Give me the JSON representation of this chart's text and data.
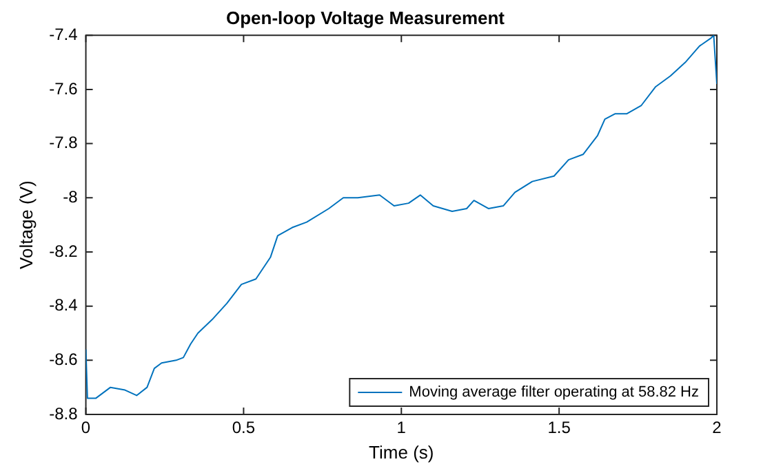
{
  "chart_data": {
    "type": "line",
    "title": "Open-loop Voltage Measurement",
    "xlabel": "Time (s)",
    "ylabel": "Voltage (V)",
    "x": [
      0,
      0.005,
      0.032,
      0.078,
      0.124,
      0.161,
      0.194,
      0.217,
      0.24,
      0.286,
      0.309,
      0.332,
      0.355,
      0.4,
      0.447,
      0.493,
      0.539,
      0.585,
      0.608,
      0.654,
      0.7,
      0.77,
      0.816,
      0.862,
      0.931,
      0.977,
      1.023,
      1.06,
      1.101,
      1.161,
      1.207,
      1.23,
      1.276,
      1.323,
      1.36,
      1.415,
      1.484,
      1.53,
      1.576,
      1.622,
      1.645,
      1.677,
      1.714,
      1.76,
      1.806,
      1.853,
      1.9,
      1.945,
      1.982,
      1.99,
      2.0
    ],
    "series": [
      {
        "name": "Moving average filter operating at 58.82 Hz",
        "color": "#0072bd",
        "values": [
          -8.56,
          -8.74,
          -8.74,
          -8.7,
          -8.71,
          -8.73,
          -8.7,
          -8.63,
          -8.61,
          -8.6,
          -8.59,
          -8.54,
          -8.5,
          -8.45,
          -8.39,
          -8.32,
          -8.3,
          -8.22,
          -8.14,
          -8.11,
          -8.09,
          -8.04,
          -8.0,
          -8.0,
          -7.99,
          -8.03,
          -8.02,
          -7.99,
          -8.03,
          -8.05,
          -8.04,
          -8.01,
          -8.04,
          -8.03,
          -7.98,
          -7.94,
          -7.92,
          -7.86,
          -7.84,
          -7.77,
          -7.71,
          -7.69,
          -7.69,
          -7.66,
          -7.59,
          -7.55,
          -7.5,
          -7.44,
          -7.41,
          -7.4,
          -7.58
        ]
      }
    ],
    "xlim": [
      0,
      2
    ],
    "xticks": [
      0,
      0.5,
      1,
      1.5,
      2
    ],
    "ylim": [
      -8.8,
      -7.4
    ],
    "yticks": [
      -8.8,
      -8.6,
      -8.4,
      -8.2,
      -8,
      -7.8,
      -7.6,
      -7.4
    ],
    "grid": false,
    "legend": "bottom right",
    "marker": "none",
    "line_style": "solid"
  }
}
